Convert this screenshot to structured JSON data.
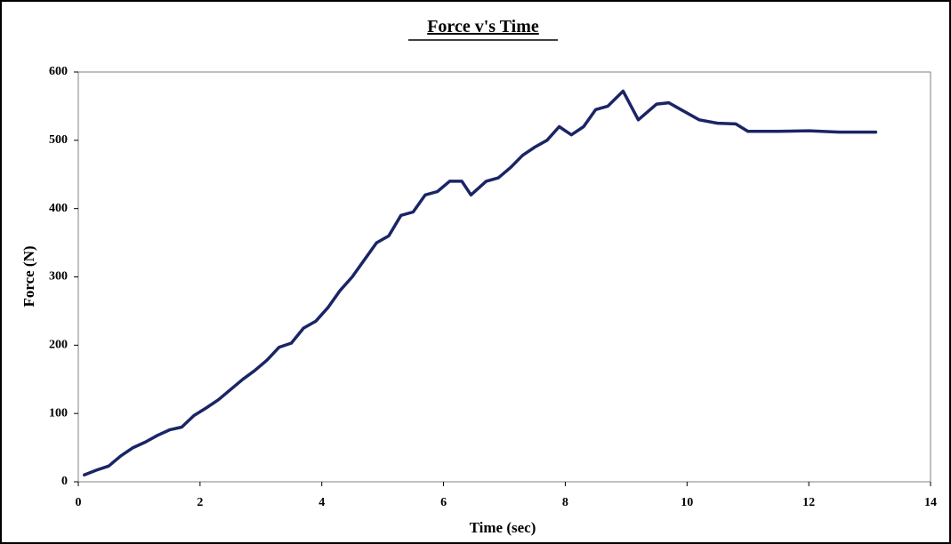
{
  "chart_data": {
    "type": "line",
    "title": "Force v's Time",
    "x_label": "Time (sec)",
    "y_label": "Force (N)",
    "xlim": [
      0,
      14
    ],
    "xticks": [
      0,
      2,
      4,
      6,
      8,
      10,
      12,
      14
    ],
    "ylim": [
      0,
      600
    ],
    "yticks": [
      0,
      100,
      200,
      300,
      400,
      500,
      600
    ],
    "grid": false,
    "series": [
      {
        "color": "#1a2566",
        "x": [
          0.1,
          0.3,
          0.5,
          0.7,
          0.9,
          1.1,
          1.3,
          1.5,
          1.7,
          1.9,
          2.1,
          2.3,
          2.5,
          2.7,
          2.9,
          3.1,
          3.3,
          3.5,
          3.7,
          3.9,
          4.1,
          4.3,
          4.5,
          4.7,
          4.9,
          5.1,
          5.3,
          5.5,
          5.7,
          5.9,
          6.1,
          6.3,
          6.45,
          6.7,
          6.9,
          7.1,
          7.3,
          7.5,
          7.7,
          7.9,
          8.1,
          8.3,
          8.5,
          8.7,
          8.95,
          9.2,
          9.5,
          9.7,
          9.9,
          10.2,
          10.5,
          10.8,
          11.0,
          11.5,
          12.0,
          12.5,
          13.1
        ],
        "values": [
          10,
          17,
          23,
          38,
          50,
          58,
          68,
          76,
          80,
          97,
          108,
          120,
          135,
          150,
          163,
          178,
          197,
          203,
          225,
          235,
          255,
          280,
          300,
          325,
          350,
          360,
          390,
          395,
          420,
          425,
          440,
          440,
          420,
          440,
          445,
          460,
          478,
          490,
          500,
          520,
          508,
          520,
          545,
          550,
          572,
          530,
          553,
          555,
          545,
          530,
          525,
          524,
          513,
          513,
          514,
          512,
          512
        ]
      }
    ]
  }
}
